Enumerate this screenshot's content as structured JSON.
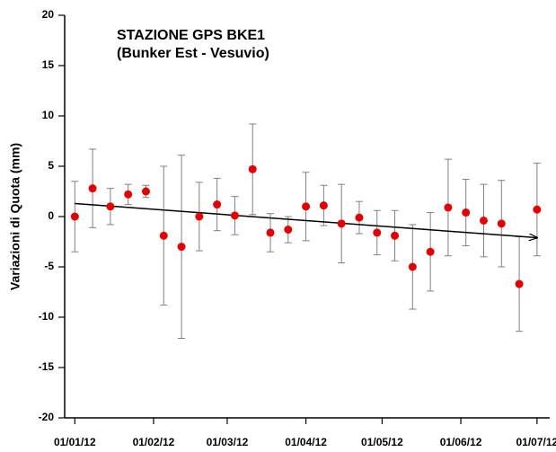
{
  "chart_data": {
    "type": "scatter",
    "title": "STAZIONE GPS BKE1",
    "subtitle": "(Bunker Est - Vesuvio)",
    "y_label": "Variazioni di Quota (mm)",
    "color": "#e00000",
    "error_color": "#808080",
    "x": [
      "2012-01-01",
      "2012-01-08",
      "2012-01-15",
      "2012-01-22",
      "2012-01-29",
      "2012-02-05",
      "2012-02-12",
      "2012-02-19",
      "2012-02-26",
      "2012-03-04",
      "2012-03-11",
      "2012-03-18",
      "2012-03-25",
      "2012-04-01",
      "2012-04-08",
      "2012-04-15",
      "2012-04-22",
      "2012-04-29",
      "2012-05-06",
      "2012-05-13",
      "2012-05-20",
      "2012-05-27",
      "2012-06-03",
      "2012-06-10",
      "2012-06-17",
      "2012-06-24",
      "2012-07-01"
    ],
    "values": [
      0.0,
      2.8,
      1.0,
      2.2,
      2.5,
      -1.9,
      -3.0,
      0.0,
      1.2,
      0.1,
      4.7,
      -1.6,
      -1.3,
      1.0,
      1.1,
      -0.7,
      -0.1,
      -1.6,
      -1.9,
      -5.0,
      -3.5,
      0.9,
      0.4,
      -0.4,
      -0.7,
      -6.7,
      0.7
    ],
    "errors": [
      3.5,
      3.9,
      1.8,
      1.0,
      0.6,
      6.9,
      9.1,
      3.4,
      2.6,
      1.9,
      4.5,
      1.9,
      1.3,
      3.4,
      2.0,
      3.9,
      1.6,
      2.2,
      2.5,
      4.2,
      3.9,
      4.8,
      3.3,
      3.6,
      4.3,
      4.7,
      4.6
    ],
    "trend": {
      "x": [
        "2012-01-01",
        "2012-07-01"
      ],
      "values": [
        1.3,
        -2.1
      ]
    },
    "xlim": [
      "2011-12-28",
      "2012-07-06"
    ],
    "xticks": [
      {
        "value": "2012-01-01",
        "label": "01/01/12"
      },
      {
        "value": "2012-02-01",
        "label": "01/02/12"
      },
      {
        "value": "2012-03-01",
        "label": "01/03/12"
      },
      {
        "value": "2012-04-01",
        "label": "01/04/12"
      },
      {
        "value": "2012-05-01",
        "label": "01/05/12"
      },
      {
        "value": "2012-06-01",
        "label": "01/06/12"
      },
      {
        "value": "2012-07-01",
        "label": "01/07/12"
      }
    ],
    "ylim": [
      -20,
      20
    ],
    "yticks": [
      -20,
      -15,
      -10,
      -5,
      0,
      5,
      10,
      15,
      20
    ]
  }
}
